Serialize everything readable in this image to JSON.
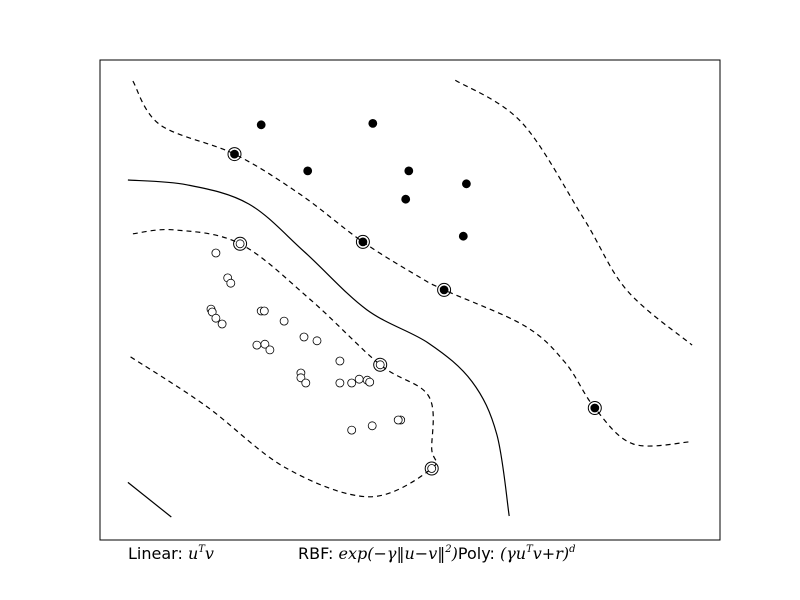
{
  "chart_data": {
    "type": "scatter",
    "title": "",
    "xlabel": "",
    "ylabel": "",
    "grid": false,
    "axes_ticks": false,
    "xlim": [
      0,
      100
    ],
    "ylim": [
      0,
      100
    ],
    "colors": {
      "background": "#ffffff",
      "frame": "#000000",
      "boundary": "#000000",
      "class_positive": "#000000",
      "class_negative": "#ffffff"
    },
    "series": [
      {
        "marker": "filled-circle",
        "points": [
          [
            26.0,
            86.5
          ],
          [
            44.0,
            86.8
          ],
          [
            33.5,
            76.9
          ],
          [
            49.8,
            76.9
          ],
          [
            59.1,
            74.2
          ],
          [
            49.3,
            71.0
          ],
          [
            58.6,
            63.3
          ],
          [
            21.7,
            80.4
          ],
          [
            42.4,
            62.1
          ],
          [
            55.5,
            52.1
          ],
          [
            79.8,
            27.5
          ]
        ]
      },
      {
        "marker": "open-circle",
        "points": [
          [
            18.7,
            59.8
          ],
          [
            20.6,
            54.6
          ],
          [
            21.1,
            53.5
          ],
          [
            17.9,
            48.1
          ],
          [
            18.1,
            47.5
          ],
          [
            18.7,
            46.2
          ],
          [
            19.7,
            45.0
          ],
          [
            26.0,
            47.7
          ],
          [
            26.5,
            47.7
          ],
          [
            29.7,
            45.6
          ],
          [
            32.9,
            42.3
          ],
          [
            35.0,
            41.5
          ],
          [
            25.3,
            40.6
          ],
          [
            26.6,
            40.8
          ],
          [
            27.4,
            39.6
          ],
          [
            38.7,
            37.3
          ],
          [
            32.4,
            34.8
          ],
          [
            32.4,
            33.8
          ],
          [
            33.2,
            32.7
          ],
          [
            38.7,
            32.7
          ],
          [
            40.6,
            32.7
          ],
          [
            41.8,
            33.5
          ],
          [
            43.1,
            33.3
          ],
          [
            43.5,
            32.9
          ],
          [
            48.5,
            25.0
          ],
          [
            48.1,
            25.0
          ],
          [
            43.9,
            23.8
          ],
          [
            40.6,
            22.9
          ],
          [
            22.6,
            61.7
          ],
          [
            45.2,
            36.5
          ],
          [
            53.5,
            14.9
          ]
        ]
      },
      {
        "marker": "support-vector-ring",
        "points": [
          [
            21.7,
            80.4
          ],
          [
            22.6,
            61.7
          ],
          [
            42.4,
            62.1
          ],
          [
            55.5,
            52.1
          ],
          [
            45.2,
            36.5
          ],
          [
            79.8,
            27.5
          ],
          [
            53.5,
            14.9
          ]
        ]
      }
    ],
    "decision_boundary": [
      [
        4.5,
        75.0
      ],
      [
        14.0,
        74.0
      ],
      [
        24.0,
        70.0
      ],
      [
        33.0,
        60.0
      ],
      [
        43.0,
        48.0
      ],
      [
        53.0,
        41.0
      ],
      [
        60.0,
        33.0
      ],
      [
        64.0,
        22.0
      ],
      [
        66.0,
        5.0
      ]
    ],
    "margins": [
      {
        "style": "dashed",
        "points": [
          [
            5.3,
            95.6
          ],
          [
            9.7,
            86.5
          ],
          [
            21.7,
            80.4
          ],
          [
            32.3,
            72.0
          ],
          [
            42.4,
            62.1
          ],
          [
            51.5,
            54.8
          ],
          [
            55.5,
            52.1
          ],
          [
            68.5,
            44.6
          ],
          [
            75.0,
            37.0
          ],
          [
            79.8,
            27.5
          ],
          [
            86.0,
            20.0
          ],
          [
            95.5,
            20.5
          ]
        ]
      },
      {
        "style": "dashed",
        "points": [
          [
            5.3,
            63.8
          ],
          [
            12.0,
            64.6
          ],
          [
            22.6,
            61.7
          ],
          [
            34.0,
            50.0
          ],
          [
            45.2,
            36.5
          ],
          [
            53.0,
            30.0
          ],
          [
            53.5,
            19.0
          ],
          [
            53.5,
            14.9
          ],
          [
            43.5,
            9.0
          ],
          [
            30.0,
            15.0
          ],
          [
            17.0,
            28.0
          ],
          [
            4.5,
            38.5
          ]
        ]
      },
      {
        "style": "dashed",
        "points": [
          [
            57.3,
            95.8
          ],
          [
            68.0,
            87.0
          ],
          [
            78.0,
            67.0
          ],
          [
            85.0,
            52.0
          ],
          [
            95.5,
            40.6
          ]
        ]
      },
      {
        "style": "solid",
        "points": [
          [
            4.5,
            12.0
          ],
          [
            11.5,
            4.8
          ]
        ]
      }
    ]
  },
  "footer": {
    "linear_label": "Linear:",
    "linear_formula": "u",
    "linear_sup": "T",
    "linear_tail": "v",
    "rbf_label": "RBF:",
    "rbf_formula": "exp(−γ‖u−v‖",
    "rbf_sup": "2",
    "rbf_tail": ")",
    "poly_label": "Poly:",
    "poly_formula": "(γu",
    "poly_sup": "T",
    "poly_tail": "v+r)",
    "poly_exp": "d"
  }
}
